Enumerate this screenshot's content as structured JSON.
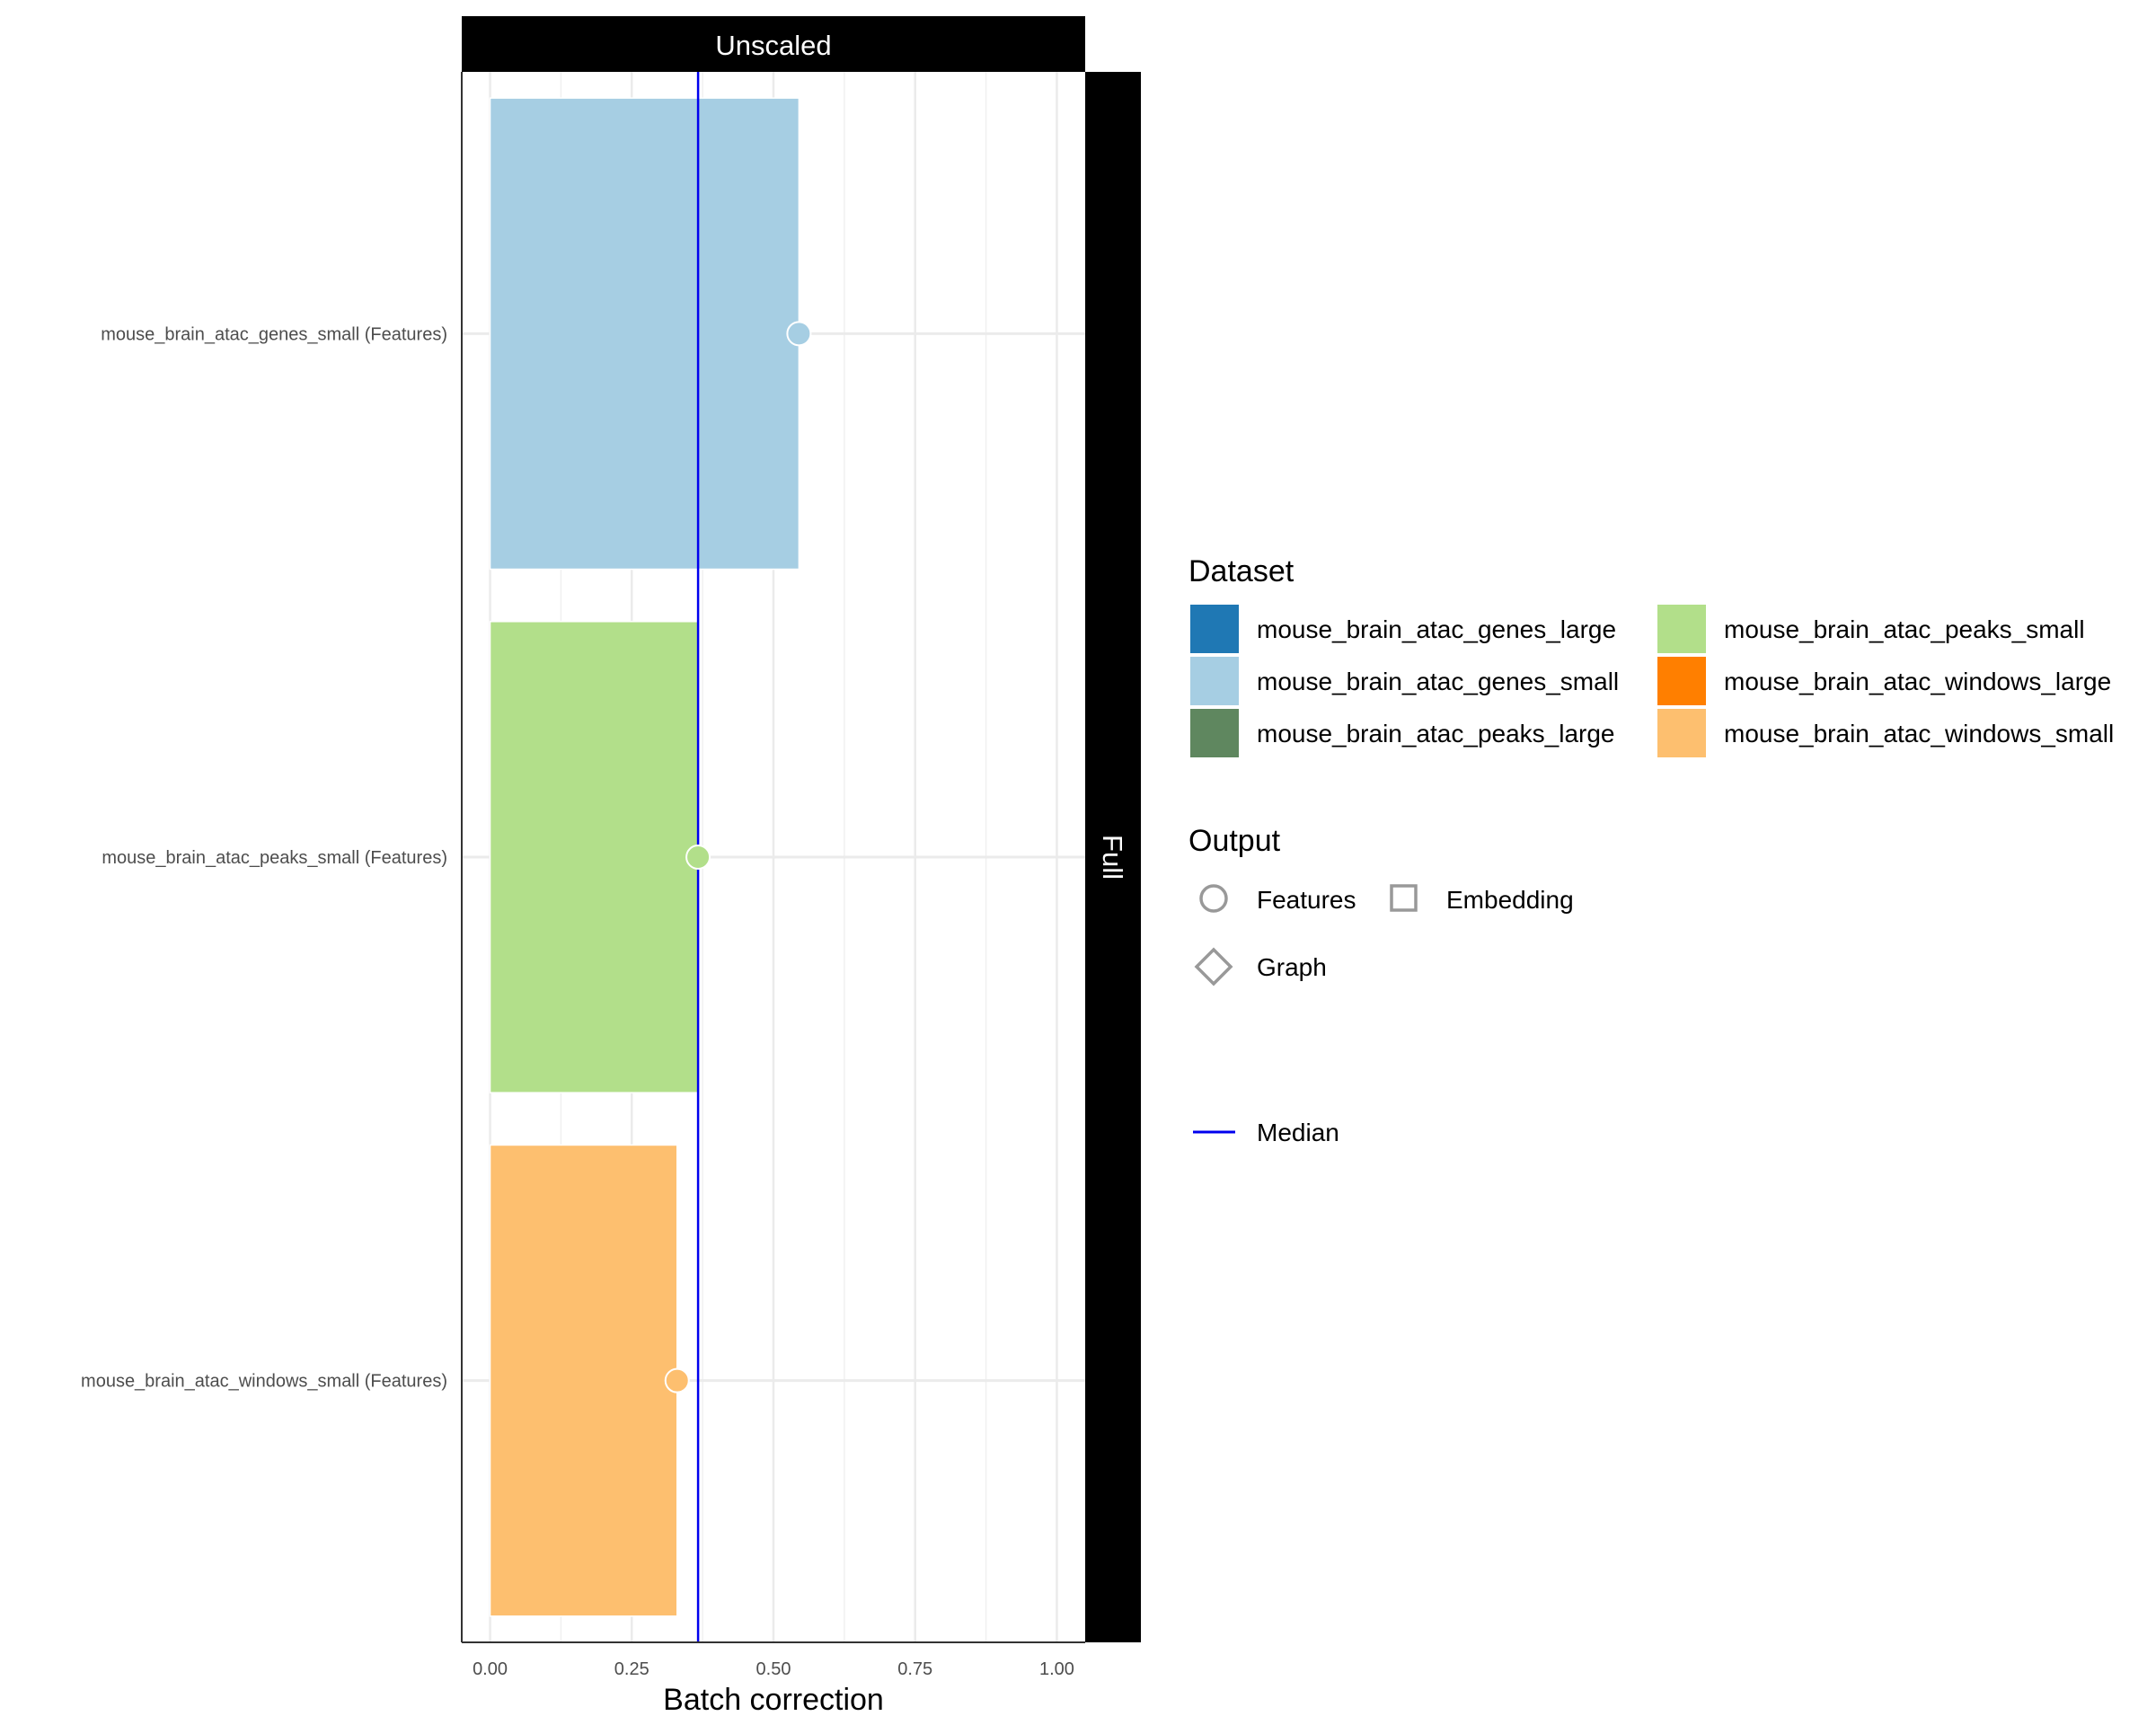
{
  "chart_data": {
    "type": "bar",
    "orientation": "horizontal",
    "facet_column_label": "Unscaled",
    "facet_row_label": "Full",
    "categories": [
      "mouse_brain_atac_genes_small (Features)",
      "mouse_brain_atac_peaks_small (Features)",
      "mouse_brain_atac_windows_small (Features)"
    ],
    "values": [
      0.545,
      0.367,
      0.33
    ],
    "bar_colors": [
      "#a6cee3",
      "#b2df8a",
      "#fdbf6f"
    ],
    "marker_shape": "circle",
    "median": 0.367,
    "median_color": "#0000ee",
    "xlabel": "Batch correction",
    "ylabel": "",
    "xlim": [
      -0.05,
      1.05
    ],
    "xticks": [
      "0.00",
      "0.25",
      "0.50",
      "0.75",
      "1.00"
    ],
    "xtick_values": [
      0,
      0.25,
      0.5,
      0.75,
      1.0
    ],
    "grid": true,
    "legend_position": "right",
    "legend": {
      "dataset_title": "Dataset",
      "datasets": [
        {
          "label": "mouse_brain_atac_genes_large",
          "color": "#1f78b4"
        },
        {
          "label": "mouse_brain_atac_peaks_small",
          "color": "#b2df8a"
        },
        {
          "label": "mouse_brain_atac_genes_small",
          "color": "#a6cee3"
        },
        {
          "label": "mouse_brain_atac_windows_large",
          "color": "#ff7f00"
        },
        {
          "label": "mouse_brain_atac_peaks_large",
          "color": "#5f875f"
        },
        {
          "label": "mouse_brain_atac_windows_small",
          "color": "#fdbf6f"
        }
      ],
      "output_title": "Output",
      "outputs": [
        {
          "label": "Features",
          "shape": "circle"
        },
        {
          "label": "Embedding",
          "shape": "square"
        },
        {
          "label": "Graph",
          "shape": "diamond"
        }
      ],
      "median_label": "Median"
    }
  }
}
